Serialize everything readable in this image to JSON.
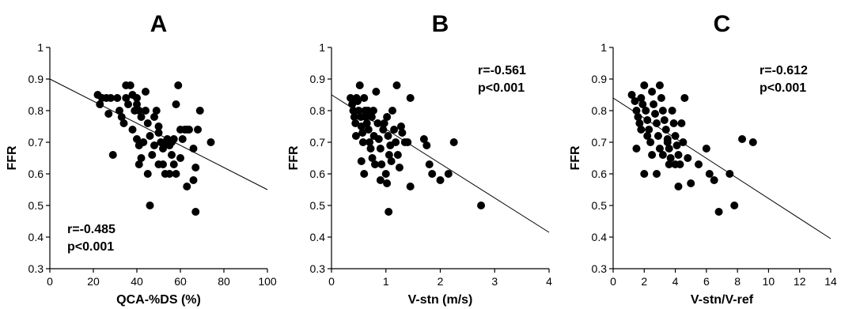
{
  "chart_data": [
    {
      "type": "scatter",
      "title": "A",
      "xlabel": "QCA-%DS  (%)",
      "ylabel": "FFR",
      "xlim": [
        0,
        100
      ],
      "ylim": [
        0.3,
        1
      ],
      "xticks": [
        "0",
        "20",
        "40",
        "60",
        "80",
        "100"
      ],
      "yticks": [
        "0.3",
        "0.4",
        "0.5",
        "0.6",
        "0.7",
        "0.8",
        "0.9",
        "1"
      ],
      "annotation": [
        "r=-0.485",
        "p<0.001"
      ],
      "annotation_position": "bottom-left",
      "fit_line": [
        [
          0,
          0.9
        ],
        [
          100,
          0.55
        ]
      ],
      "points": [
        [
          22,
          0.85
        ],
        [
          24,
          0.84
        ],
        [
          26,
          0.84
        ],
        [
          28,
          0.84
        ],
        [
          23,
          0.82
        ],
        [
          27,
          0.79
        ],
        [
          29,
          0.66
        ],
        [
          31,
          0.84
        ],
        [
          32,
          0.8
        ],
        [
          33,
          0.78
        ],
        [
          34,
          0.76
        ],
        [
          35,
          0.84
        ],
        [
          35,
          0.88
        ],
        [
          37,
          0.88
        ],
        [
          38,
          0.85
        ],
        [
          36,
          0.82
        ],
        [
          39,
          0.8
        ],
        [
          40,
          0.84
        ],
        [
          41,
          0.8
        ],
        [
          42,
          0.78
        ],
        [
          38,
          0.74
        ],
        [
          40,
          0.71
        ],
        [
          41,
          0.69
        ],
        [
          43,
          0.7
        ],
        [
          44,
          0.86
        ],
        [
          44,
          0.8
        ],
        [
          45,
          0.76
        ],
        [
          46,
          0.72
        ],
        [
          47,
          0.66
        ],
        [
          42,
          0.65
        ],
        [
          41,
          0.63
        ],
        [
          40,
          0.82
        ],
        [
          48,
          0.78
        ],
        [
          49,
          0.8
        ],
        [
          50,
          0.75
        ],
        [
          50,
          0.73
        ],
        [
          51,
          0.7
        ],
        [
          52,
          0.68
        ],
        [
          52,
          0.63
        ],
        [
          50,
          0.63
        ],
        [
          53,
          0.6
        ],
        [
          54,
          0.71
        ],
        [
          55,
          0.69
        ],
        [
          56,
          0.7
        ],
        [
          57,
          0.71
        ],
        [
          56,
          0.66
        ],
        [
          57,
          0.63
        ],
        [
          58,
          0.6
        ],
        [
          55,
          0.6
        ],
        [
          58,
          0.82
        ],
        [
          59,
          0.88
        ],
        [
          60,
          0.74
        ],
        [
          61,
          0.71
        ],
        [
          62,
          0.74
        ],
        [
          63,
          0.74
        ],
        [
          64,
          0.74
        ],
        [
          66,
          0.68
        ],
        [
          66,
          0.58
        ],
        [
          67,
          0.62
        ],
        [
          68,
          0.74
        ],
        [
          69,
          0.8
        ],
        [
          74,
          0.7
        ],
        [
          46,
          0.5
        ],
        [
          67,
          0.48
        ],
        [
          63,
          0.56
        ],
        [
          60,
          0.65
        ],
        [
          45,
          0.6
        ],
        [
          53,
          0.7
        ],
        [
          48,
          0.69
        ]
      ]
    },
    {
      "type": "scatter",
      "title": "B",
      "xlabel": "V-stn (m/s)",
      "ylabel": "FFR",
      "xlim": [
        0,
        4
      ],
      "ylim": [
        0.3,
        1
      ],
      "xticks": [
        "0",
        "1",
        "2",
        "3",
        "4"
      ],
      "yticks": [
        "0.3",
        "0.4",
        "0.5",
        "0.6",
        "0.7",
        "0.8",
        "0.9",
        "1"
      ],
      "annotation": [
        "r=-0.561",
        "p<0.001"
      ],
      "annotation_position": "top-right",
      "fit_line": [
        [
          0,
          0.85
        ],
        [
          4,
          0.415
        ]
      ],
      "points": [
        [
          0.35,
          0.84
        ],
        [
          0.38,
          0.82
        ],
        [
          0.4,
          0.8
        ],
        [
          0.42,
          0.78
        ],
        [
          0.44,
          0.76
        ],
        [
          0.46,
          0.84
        ],
        [
          0.48,
          0.83
        ],
        [
          0.5,
          0.8
        ],
        [
          0.52,
          0.88
        ],
        [
          0.54,
          0.78
        ],
        [
          0.55,
          0.75
        ],
        [
          0.57,
          0.73
        ],
        [
          0.58,
          0.7
        ],
        [
          0.6,
          0.84
        ],
        [
          0.62,
          0.8
        ],
        [
          0.63,
          0.78
        ],
        [
          0.65,
          0.76
        ],
        [
          0.67,
          0.8
        ],
        [
          0.68,
          0.74
        ],
        [
          0.7,
          0.7
        ],
        [
          0.72,
          0.68
        ],
        [
          0.74,
          0.78
        ],
        [
          0.75,
          0.65
        ],
        [
          0.77,
          0.8
        ],
        [
          0.78,
          0.72
        ],
        [
          0.8,
          0.63
        ],
        [
          0.82,
          0.86
        ],
        [
          0.85,
          0.76
        ],
        [
          0.87,
          0.71
        ],
        [
          0.9,
          0.68
        ],
        [
          0.92,
          0.63
        ],
        [
          0.95,
          0.74
        ],
        [
          0.97,
          0.76
        ],
        [
          1.0,
          0.6
        ],
        [
          1.02,
          0.78
        ],
        [
          1.04,
          0.72
        ],
        [
          1.06,
          0.66
        ],
        [
          1.08,
          0.69
        ],
        [
          1.1,
          0.64
        ],
        [
          1.12,
          0.8
        ],
        [
          1.15,
          0.74
        ],
        [
          1.18,
          0.7
        ],
        [
          1.2,
          0.88
        ],
        [
          1.22,
          0.66
        ],
        [
          1.25,
          0.62
        ],
        [
          1.28,
          0.75
        ],
        [
          1.3,
          0.73
        ],
        [
          1.35,
          0.7
        ],
        [
          1.4,
          0.7
        ],
        [
          1.45,
          0.84
        ],
        [
          0.55,
          0.64
        ],
        [
          0.6,
          0.6
        ],
        [
          0.9,
          0.58
        ],
        [
          1.02,
          0.57
        ],
        [
          1.45,
          0.56
        ],
        [
          1.05,
          0.48
        ],
        [
          1.7,
          0.71
        ],
        [
          1.75,
          0.69
        ],
        [
          1.8,
          0.63
        ],
        [
          1.85,
          0.6
        ],
        [
          2.0,
          0.58
        ],
        [
          2.15,
          0.6
        ],
        [
          2.25,
          0.7
        ],
        [
          2.75,
          0.5
        ],
        [
          0.45,
          0.72
        ]
      ]
    },
    {
      "type": "scatter",
      "title": "C",
      "xlabel": "V-stn/V-ref",
      "ylabel": "FFR",
      "xlim": [
        0,
        14
      ],
      "ylim": [
        0.3,
        1
      ],
      "xticks": [
        "0",
        "2",
        "4",
        "6",
        "8",
        "10",
        "12",
        "14"
      ],
      "yticks": [
        "0.3",
        "0.4",
        "0.5",
        "0.6",
        "0.7",
        "0.8",
        "0.9",
        "1"
      ],
      "annotation": [
        "r=-0.612",
        "p<0.001"
      ],
      "annotation_position": "top-right",
      "fit_line": [
        [
          0,
          0.84
        ],
        [
          14,
          0.395
        ]
      ],
      "points": [
        [
          1.2,
          0.85
        ],
        [
          1.4,
          0.83
        ],
        [
          1.5,
          0.8
        ],
        [
          1.6,
          0.78
        ],
        [
          1.7,
          0.76
        ],
        [
          1.8,
          0.84
        ],
        [
          1.9,
          0.82
        ],
        [
          2.0,
          0.88
        ],
        [
          2.1,
          0.8
        ],
        [
          2.2,
          0.77
        ],
        [
          2.3,
          0.74
        ],
        [
          2.4,
          0.7
        ],
        [
          2.5,
          0.86
        ],
        [
          2.6,
          0.82
        ],
        [
          2.7,
          0.79
        ],
        [
          2.8,
          0.76
        ],
        [
          2.9,
          0.72
        ],
        [
          3.0,
          0.88
        ],
        [
          3.1,
          0.84
        ],
        [
          3.2,
          0.8
        ],
        [
          3.3,
          0.77
        ],
        [
          3.4,
          0.74
        ],
        [
          3.5,
          0.71
        ],
        [
          3.6,
          0.68
        ],
        [
          3.7,
          0.65
        ],
        [
          3.8,
          0.8
        ],
        [
          3.9,
          0.76
        ],
        [
          4.0,
          0.72
        ],
        [
          4.1,
          0.69
        ],
        [
          4.2,
          0.66
        ],
        [
          4.3,
          0.63
        ],
        [
          4.4,
          0.76
        ],
        [
          4.5,
          0.7
        ],
        [
          4.6,
          0.84
        ],
        [
          4.8,
          0.65
        ],
        [
          2.0,
          0.6
        ],
        [
          2.8,
          0.6
        ],
        [
          3.6,
          0.63
        ],
        [
          4.0,
          0.63
        ],
        [
          4.2,
          0.56
        ],
        [
          5.0,
          0.57
        ],
        [
          5.5,
          0.63
        ],
        [
          6.0,
          0.68
        ],
        [
          6.2,
          0.6
        ],
        [
          6.5,
          0.58
        ],
        [
          6.8,
          0.48
        ],
        [
          7.5,
          0.6
        ],
        [
          7.8,
          0.5
        ],
        [
          8.3,
          0.71
        ],
        [
          9.0,
          0.7
        ],
        [
          1.5,
          0.68
        ],
        [
          2.5,
          0.66
        ],
        [
          3.0,
          0.68
        ],
        [
          3.5,
          0.7
        ],
        [
          1.8,
          0.74
        ],
        [
          2.2,
          0.72
        ],
        [
          3.2,
          0.66
        ]
      ]
    }
  ]
}
